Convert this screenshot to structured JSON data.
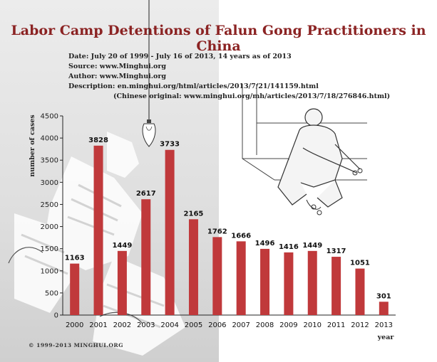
{
  "header": {
    "title": "Labor Camp Detentions of Falun Gong Practitioners in China",
    "date_line": "Date: July 20 of 1999 - July 16 of 2013, 14 years as of 2013",
    "source_line": "Source: www.Minghui.org",
    "author_line": "Author: www.Minghui.org",
    "description_line": "Description: en.minghui.org/html/articles/2013/7/21/141159.html",
    "chinese_line": "(Chinese original: www.minghui.org/mh/articles/2013/7/18/276846.html)"
  },
  "footer": {
    "copyright": "© 1999-2013 MINGHUI.ORG"
  },
  "colors": {
    "bar": "#c0393b",
    "title": "#8b2323",
    "axis": "#222222"
  },
  "chart_data": {
    "type": "bar",
    "categories": [
      "2000",
      "2001",
      "2002",
      "2003",
      "2004",
      "2005",
      "2006",
      "2007",
      "2008",
      "2009",
      "2010",
      "2011",
      "2012",
      "2013"
    ],
    "values": [
      1163,
      3828,
      1449,
      2617,
      3733,
      2165,
      1762,
      1666,
      1496,
      1416,
      1449,
      1317,
      1051,
      301
    ],
    "title": "Labor Camp Detentions of Falun Gong Practitioners in China",
    "xlabel": "year",
    "ylabel": "number of cases",
    "ylim": [
      0,
      4500
    ],
    "yticks": [
      0,
      500,
      1000,
      1500,
      2000,
      2500,
      3000,
      3500,
      4000,
      4500
    ],
    "grid": false,
    "data_labels": true
  }
}
